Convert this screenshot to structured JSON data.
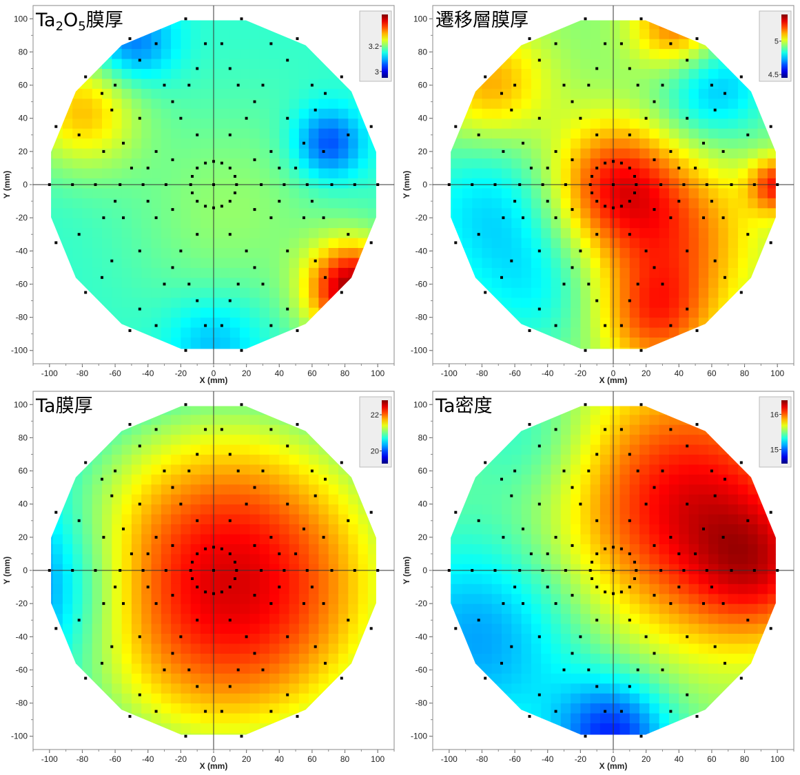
{
  "chart_data": [
    {
      "type": "heatmap",
      "title": "Ta2O5膜厚",
      "title_parts": [
        "Ta",
        "2",
        "O",
        "5",
        "膜厚"
      ],
      "xlabel": "X (mm)",
      "ylabel": "Y (mm)",
      "xlim": [
        -110,
        110
      ],
      "ylim": [
        -108,
        108
      ],
      "xticks": [
        -100,
        -80,
        -60,
        -40,
        -20,
        0,
        20,
        40,
        60,
        80,
        100
      ],
      "yticks": [
        -100,
        -80,
        -60,
        -40,
        -20,
        0,
        20,
        40,
        60,
        80,
        100
      ],
      "grid": false,
      "colorbar": {
        "min": 2.95,
        "max": 3.45,
        "ticks": [
          3,
          3.2
        ],
        "tick_labels": [
          "3",
          "3.2"
        ],
        "position": "top-right"
      },
      "base_value": 3.16,
      "hotspots": [
        {
          "x": 10,
          "y": -15,
          "r": 45,
          "v": 0.05
        },
        {
          "x": -80,
          "y": 45,
          "r": 25,
          "v": 0.13
        },
        {
          "x": 85,
          "y": -63,
          "r": 20,
          "v": 0.27
        },
        {
          "x": 70,
          "y": 25,
          "r": 15,
          "v": -0.12
        },
        {
          "x": -50,
          "y": 85,
          "r": 18,
          "v": -0.1
        },
        {
          "x": 0,
          "y": -95,
          "r": 20,
          "v": -0.06
        }
      ]
    },
    {
      "type": "heatmap",
      "title": "遷移層膜厚",
      "title_parts": [
        "遷移層膜厚"
      ],
      "xlabel": "X (mm)",
      "ylabel": "Y (mm)",
      "xlim": [
        -110,
        110
      ],
      "ylim": [
        -108,
        108
      ],
      "xticks": [
        -100,
        -80,
        -60,
        -40,
        -20,
        0,
        20,
        40,
        60,
        80,
        100
      ],
      "yticks": [
        -100,
        -80,
        -60,
        -40,
        -20,
        0,
        20,
        40,
        60,
        80,
        100
      ],
      "grid": false,
      "colorbar": {
        "min": 4.45,
        "max": 5.4,
        "ticks": [
          4.5,
          5
        ],
        "tick_labels": [
          "4.5",
          "5"
        ],
        "position": "top-right"
      },
      "base_value": 4.93,
      "hotspots": [
        {
          "x": 0,
          "y": 0,
          "r": 28,
          "v": 0.3
        },
        {
          "x": 40,
          "y": -30,
          "r": 35,
          "v": 0.22
        },
        {
          "x": 25,
          "y": -80,
          "r": 25,
          "v": 0.25
        },
        {
          "x": -75,
          "y": 60,
          "r": 25,
          "v": 0.2
        },
        {
          "x": 40,
          "y": 95,
          "r": 20,
          "v": 0.28
        },
        {
          "x": 100,
          "y": 0,
          "r": 12,
          "v": 0.3
        },
        {
          "x": -75,
          "y": -15,
          "r": 35,
          "v": -0.15
        },
        {
          "x": 60,
          "y": 60,
          "r": 25,
          "v": -0.2
        },
        {
          "x": -45,
          "y": -65,
          "r": 30,
          "v": -0.1
        }
      ]
    },
    {
      "type": "heatmap",
      "title": "Ta膜厚",
      "title_parts": [
        "Ta膜厚"
      ],
      "xlabel": "X (mm)",
      "ylabel": "Y (mm)",
      "xlim": [
        -110,
        110
      ],
      "ylim": [
        -108,
        108
      ],
      "xticks": [
        -100,
        -80,
        -60,
        -40,
        -20,
        0,
        20,
        40,
        60,
        80,
        100
      ],
      "yticks": [
        -100,
        -80,
        -60,
        -40,
        -20,
        0,
        20,
        40,
        60,
        80,
        100
      ],
      "grid": false,
      "colorbar": {
        "min": 19.3,
        "max": 22.8,
        "ticks": [
          20,
          22
        ],
        "tick_labels": [
          "20",
          "22"
        ],
        "position": "top-right"
      },
      "base_value": 19.9,
      "hotspots": [
        {
          "x": 10,
          "y": -8,
          "r": 85,
          "v": 2.6
        },
        {
          "x": -100,
          "y": -10,
          "r": 35,
          "v": -0.7
        }
      ]
    },
    {
      "type": "heatmap",
      "title": "Ta密度",
      "title_parts": [
        "Ta密度"
      ],
      "xlabel": "X (mm)",
      "ylabel": "Y (mm)",
      "xlim": [
        -110,
        110
      ],
      "ylim": [
        -108,
        108
      ],
      "xticks": [
        -100,
        -80,
        -60,
        -40,
        -20,
        0,
        20,
        40,
        60,
        80,
        100
      ],
      "yticks": [
        -100,
        -80,
        -60,
        -40,
        -20,
        0,
        20,
        40,
        60,
        80,
        100
      ],
      "grid": false,
      "colorbar": {
        "min": 14.6,
        "max": 16.4,
        "ticks": [
          15,
          16
        ],
        "tick_labels": [
          "15",
          "16"
        ],
        "position": "top-right"
      },
      "base_value": 15.5,
      "hotspots": [
        {
          "x": 45,
          "y": 40,
          "r": 55,
          "v": 0.7
        },
        {
          "x": 90,
          "y": 0,
          "r": 30,
          "v": 0.4
        },
        {
          "x": -80,
          "y": -40,
          "r": 45,
          "v": -0.4
        },
        {
          "x": 0,
          "y": -100,
          "r": 25,
          "v": -0.6
        },
        {
          "x": -50,
          "y": 80,
          "r": 30,
          "v": -0.2
        }
      ]
    }
  ],
  "sample_points": [
    [
      0,
      0
    ],
    [
      14,
      0
    ],
    [
      -14,
      0
    ],
    [
      0,
      14
    ],
    [
      0,
      -14
    ],
    [
      10,
      10
    ],
    [
      -10,
      10
    ],
    [
      10,
      -10
    ],
    [
      -10,
      -10
    ],
    [
      5,
      13
    ],
    [
      -5,
      13
    ],
    [
      5,
      -13
    ],
    [
      -5,
      -13
    ],
    [
      13,
      5
    ],
    [
      -13,
      5
    ],
    [
      13,
      -5
    ],
    [
      -13,
      -5
    ],
    [
      -100,
      0
    ],
    [
      -86,
      0
    ],
    [
      -72,
      0
    ],
    [
      -57,
      0
    ],
    [
      -43,
      0
    ],
    [
      -29,
      0
    ],
    [
      29,
      0
    ],
    [
      43,
      0
    ],
    [
      57,
      0
    ],
    [
      72,
      0
    ],
    [
      86,
      0
    ],
    [
      100,
      0
    ],
    [
      -17,
      100
    ],
    [
      17,
      100
    ],
    [
      -51,
      88
    ],
    [
      51,
      88
    ],
    [
      -78,
      65
    ],
    [
      78,
      65
    ],
    [
      -96,
      35
    ],
    [
      96,
      35
    ],
    [
      -17,
      -100
    ],
    [
      17,
      -100
    ],
    [
      -51,
      -88
    ],
    [
      51,
      -88
    ],
    [
      -78,
      -65
    ],
    [
      78,
      -65
    ],
    [
      -96,
      -35
    ],
    [
      96,
      -35
    ],
    [
      -82,
      30
    ],
    [
      82,
      30
    ],
    [
      -68,
      55
    ],
    [
      68,
      55
    ],
    [
      -82,
      -30
    ],
    [
      82,
      -30
    ],
    [
      -68,
      -56
    ],
    [
      68,
      -56
    ],
    [
      -35,
      85
    ],
    [
      35,
      85
    ],
    [
      -35,
      -85
    ],
    [
      35,
      -85
    ],
    [
      -45,
      75
    ],
    [
      45,
      75
    ],
    [
      -45,
      -75
    ],
    [
      45,
      -75
    ],
    [
      -62,
      45
    ],
    [
      62,
      45
    ],
    [
      -62,
      -46
    ],
    [
      62,
      -46
    ],
    [
      -67,
      20
    ],
    [
      67,
      20
    ],
    [
      -67,
      -20
    ],
    [
      67,
      -20
    ],
    [
      -55,
      25
    ],
    [
      55,
      25
    ],
    [
      -55,
      -20
    ],
    [
      55,
      -20
    ],
    [
      -45,
      40
    ],
    [
      45,
      40
    ],
    [
      -45,
      -40
    ],
    [
      45,
      -40
    ],
    [
      -30,
      60
    ],
    [
      30,
      60
    ],
    [
      -30,
      -60
    ],
    [
      30,
      -60
    ],
    [
      -25,
      50
    ],
    [
      25,
      50
    ],
    [
      -25,
      -50
    ],
    [
      25,
      -50
    ],
    [
      -10,
      70
    ],
    [
      10,
      70
    ],
    [
      -10,
      -70
    ],
    [
      10,
      -70
    ],
    [
      -5,
      85
    ],
    [
      5,
      85
    ],
    [
      -5,
      -85
    ],
    [
      5,
      -85
    ],
    [
      -20,
      40
    ],
    [
      20,
      40
    ],
    [
      -20,
      -40
    ],
    [
      20,
      -40
    ],
    [
      -35,
      20
    ],
    [
      35,
      20
    ],
    [
      -35,
      -20
    ],
    [
      35,
      -20
    ],
    [
      -40,
      10
    ],
    [
      40,
      10
    ],
    [
      -40,
      -10
    ],
    [
      40,
      -10
    ],
    [
      -25,
      15
    ],
    [
      25,
      15
    ],
    [
      -25,
      -15
    ],
    [
      25,
      -15
    ],
    [
      -15,
      60
    ],
    [
      15,
      60
    ],
    [
      -15,
      -60
    ],
    [
      15,
      -60
    ],
    [
      -10,
      30
    ],
    [
      10,
      30
    ],
    [
      -10,
      -30
    ],
    [
      10,
      -30
    ],
    [
      -60,
      60
    ],
    [
      60,
      60
    ],
    [
      -60,
      -10
    ],
    [
      60,
      -10
    ],
    [
      -50,
      10
    ],
    [
      50,
      10
    ]
  ]
}
